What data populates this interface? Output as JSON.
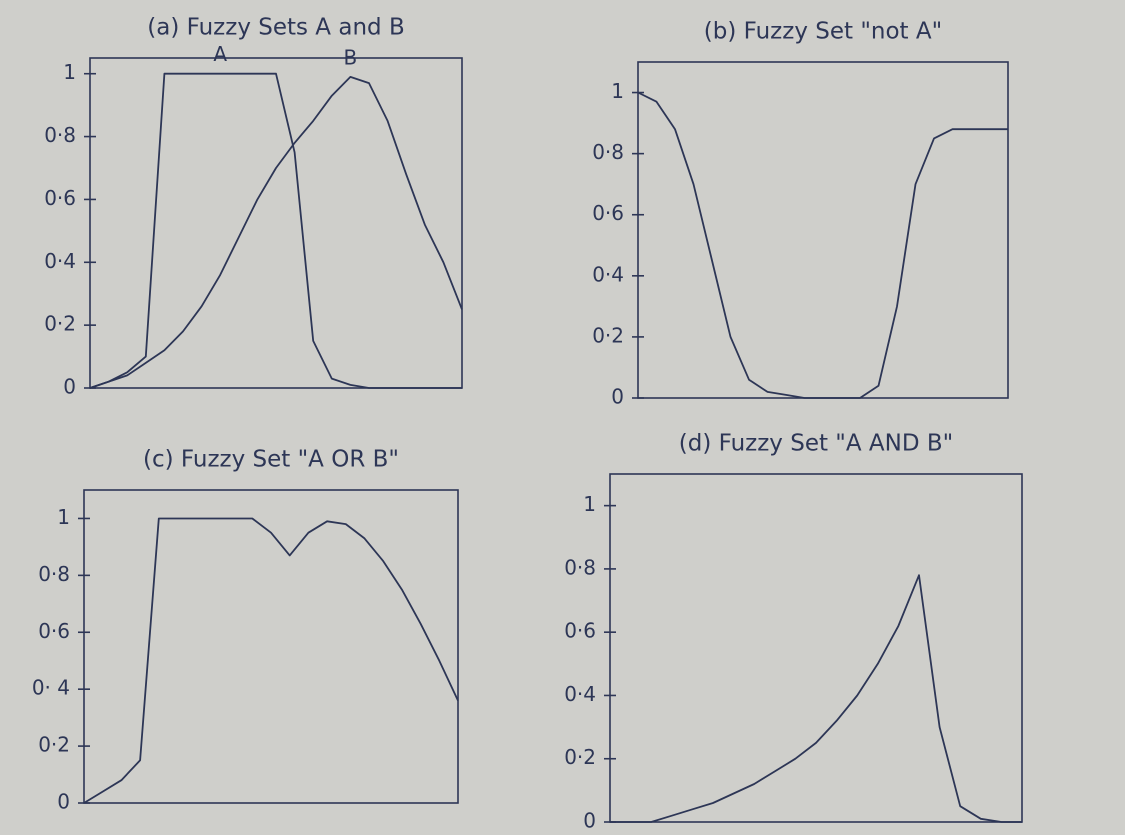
{
  "chart_data": [
    {
      "type": "line",
      "title": "(a) Fuzzy Sets A and B",
      "categories": [
        null,
        null,
        null,
        null,
        null,
        null,
        null,
        null,
        null,
        null,
        null,
        null,
        null,
        null,
        null,
        null,
        null,
        null,
        null,
        null,
        null
      ],
      "series": [
        {
          "name": "A",
          "color": "#2d3656",
          "values": [
            0,
            0.02,
            0.05,
            0.1,
            1,
            1,
            1,
            1,
            1,
            1,
            1,
            0.75,
            0.15,
            0.03,
            0.01,
            0,
            0,
            0,
            0,
            0,
            0
          ]
        },
        {
          "name": "B",
          "color": "#2d3656",
          "values": [
            0,
            0.02,
            0.04,
            0.08,
            0.12,
            0.18,
            0.26,
            0.36,
            0.48,
            0.6,
            0.7,
            0.78,
            0.85,
            0.93,
            0.99,
            0.97,
            0.85,
            0.68,
            0.52,
            0.4,
            0.25
          ]
        }
      ],
      "ylim": [
        0,
        1.05
      ],
      "yticks": [
        0,
        {
          "value": 0.2,
          "label": "0·2"
        },
        {
          "value": 0.4,
          "label": "0·4"
        },
        {
          "value": 0.6,
          "label": "0·6"
        },
        {
          "value": 0.8,
          "label": "0·8"
        },
        1
      ]
    },
    {
      "type": "line",
      "title": "(b) Fuzzy Set \"not A\"",
      "categories": [
        null,
        null,
        null,
        null,
        null,
        null,
        null,
        null,
        null,
        null,
        null,
        null,
        null,
        null,
        null,
        null,
        null,
        null,
        null,
        null,
        null
      ],
      "values": [
        1,
        0.97,
        0.88,
        0.7,
        0.45,
        0.2,
        0.06,
        0.02,
        0.01,
        0,
        0,
        0,
        0,
        0.04,
        0.3,
        0.7,
        0.85,
        0.88,
        0.88,
        0.88,
        0.88
      ],
      "color": "#2d3656",
      "ylim": [
        0,
        1.1
      ],
      "yticks": [
        0,
        {
          "value": 0.2,
          "label": "0·2"
        },
        {
          "value": 0.4,
          "label": "0·4"
        },
        {
          "value": 0.6,
          "label": "0·6"
        },
        {
          "value": 0.8,
          "label": "0·8"
        },
        1
      ]
    },
    {
      "type": "line",
      "title": "(c) Fuzzy Set \"A OR B\"",
      "categories": [
        null,
        null,
        null,
        null,
        null,
        null,
        null,
        null,
        null,
        null,
        null,
        null,
        null,
        null,
        null,
        null,
        null,
        null,
        null,
        null,
        null
      ],
      "values": [
        0,
        0.04,
        0.08,
        0.15,
        1,
        1,
        1,
        1,
        1,
        1,
        0.95,
        0.87,
        0.95,
        0.99,
        0.98,
        0.93,
        0.85,
        0.75,
        0.63,
        0.5,
        0.36
      ],
      "color": "#2d3656",
      "ylim": [
        0,
        1.1
      ],
      "yticks": [
        0,
        {
          "value": 0.2,
          "label": "0·2"
        },
        {
          "value": 0.4,
          "label": "0· 4"
        },
        {
          "value": 0.6,
          "label": "0·6"
        },
        {
          "value": 0.8,
          "label": "0·8"
        },
        1
      ]
    },
    {
      "type": "line",
      "title": "(d) Fuzzy Set \"A AND B\"",
      "categories": [
        null,
        null,
        null,
        null,
        null,
        null,
        null,
        null,
        null,
        null,
        null,
        null,
        null,
        null,
        null,
        null,
        null,
        null,
        null,
        null,
        null
      ],
      "values": [
        0,
        0,
        0,
        0.02,
        0.04,
        0.06,
        0.09,
        0.12,
        0.16,
        0.2,
        0.25,
        0.32,
        0.4,
        0.5,
        0.62,
        0.78,
        0.3,
        0.05,
        0.01,
        0,
        0
      ],
      "color": "#2d3656",
      "ylim": [
        0,
        1.1
      ],
      "yticks": [
        0,
        {
          "value": 0.2,
          "label": "0·2"
        },
        {
          "value": 0.4,
          "label": "0·4"
        },
        {
          "value": 0.6,
          "label": "0·6"
        },
        {
          "value": 0.8,
          "label": "0·8"
        },
        1
      ]
    }
  ]
}
